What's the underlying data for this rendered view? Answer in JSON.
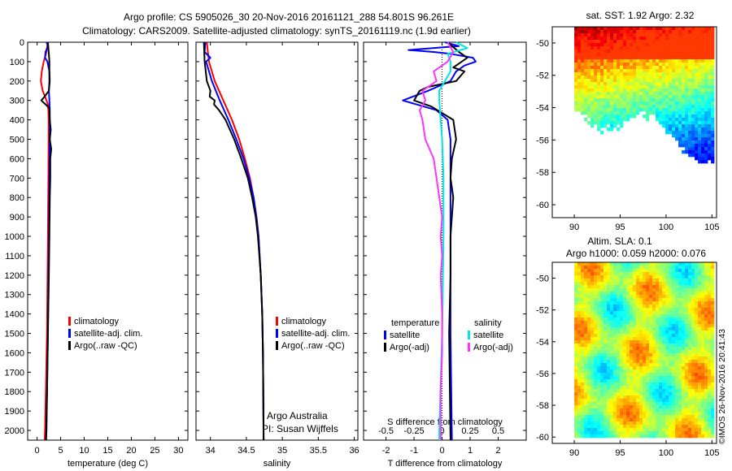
{
  "title": {
    "line1": "Argo profile: CS 5905026_30 20-Nov-2016 20161121_288 54.801S 96.261E",
    "line2": "Climatology: CARS2009. Satellite-adjusted climatology: synTS_20161119.nc (1.9d earlier)"
  },
  "credit": {
    "line1": "Argo Australia",
    "line2": "PI: Susan Wijffels",
    "stamp": "©IMOS 26-Nov-2016 20:41:43"
  },
  "colors": {
    "climatology": "#ff0000",
    "satellite": "#0000ff",
    "argo": "#000000",
    "satellite_salinity": "#00e5e5",
    "argo_salinity": "#ff33ff"
  },
  "maps": {
    "sst": {
      "title": "sat. SST: 1.92 Argo: 2.32",
      "colormap": "jet",
      "mask": "land/cloud below ~-55S"
    },
    "sla": {
      "title_line1": "Altim. SLA: 0.1",
      "title_line2": "Argo h1000: 0.059 h2000: 0.076",
      "colormap": "jet"
    },
    "x_ticks": [
      "90",
      "95",
      "100",
      "105"
    ],
    "y_ticks": [
      "-50",
      "-52",
      "-54",
      "-56",
      "-58",
      "-60"
    ]
  },
  "chart_data": [
    {
      "type": "line",
      "xlabel": "temperature (deg C)",
      "xlim": [
        -2,
        32
      ],
      "ylim": [
        2050,
        0
      ],
      "x_ticks": [
        "0",
        "5",
        "10",
        "15",
        "20",
        "25",
        "30"
      ],
      "y_ticks": [
        "0",
        "100",
        "200",
        "300",
        "400",
        "500",
        "600",
        "700",
        "800",
        "900",
        "1000",
        "1100",
        "1200",
        "1300",
        "1400",
        "1500",
        "1600",
        "1700",
        "1800",
        "1900",
        "2000"
      ],
      "legend": [
        "climatology",
        "satellite-adj. clim.",
        "Argo(..raw -QC)"
      ],
      "series": [
        {
          "name": "climatology",
          "depth": [
            0,
            50,
            100,
            150,
            200,
            250,
            300,
            320,
            350,
            400,
            500,
            700,
            1000,
            1500,
            2000,
            2050
          ],
          "values": [
            2.3,
            2.0,
            1.4,
            1.0,
            0.8,
            1.2,
            2.0,
            2.3,
            2.4,
            2.45,
            2.45,
            2.4,
            2.3,
            2.1,
            1.7,
            1.6
          ]
        },
        {
          "name": "satellite-adj. clim.",
          "depth": [
            0,
            20,
            50,
            80,
            100,
            150,
            200,
            250,
            300,
            350,
            400,
            500,
            700,
            1000,
            1500,
            2000,
            2050
          ],
          "values": [
            2.0,
            2.3,
            1.8,
            1.7,
            2.2,
            2.6,
            2.6,
            2.5,
            2.6,
            2.7,
            2.7,
            2.7,
            2.6,
            2.5,
            2.3,
            2.0,
            1.9
          ]
        },
        {
          "name": "Argo(..raw -QC)",
          "depth": [
            0,
            30,
            60,
            100,
            150,
            200,
            250,
            280,
            300,
            320,
            340,
            400,
            450,
            500,
            550,
            600,
            700,
            800,
            1000,
            1200,
            1500,
            1800,
            2050
          ],
          "values": [
            2.3,
            2.4,
            2.5,
            2.6,
            2.6,
            2.7,
            2.5,
            1.6,
            0.9,
            1.8,
            2.6,
            2.7,
            2.9,
            2.7,
            3.0,
            2.8,
            2.8,
            2.7,
            2.6,
            2.5,
            2.3,
            2.1,
            1.9
          ]
        }
      ]
    },
    {
      "type": "line",
      "xlabel": "salinity",
      "xlim": [
        33.8,
        36.05
      ],
      "ylim": [
        2050,
        0
      ],
      "x_ticks": [
        "34",
        "34.5",
        "35",
        "35.5",
        "36"
      ],
      "legend": [
        "climatology",
        "satellite-adj. clim.",
        "Argo(..raw -QC)"
      ],
      "series": [
        {
          "name": "climatology",
          "depth": [
            0,
            100,
            200,
            300,
            400,
            500,
            600,
            700,
            800,
            900,
            1000,
            1200,
            1400,
            1600,
            1800,
            2050
          ],
          "values": [
            33.95,
            33.98,
            34.06,
            34.18,
            34.3,
            34.4,
            34.48,
            34.55,
            34.6,
            34.64,
            34.67,
            34.7,
            34.72,
            34.73,
            34.735,
            34.74
          ]
        },
        {
          "name": "satellite-adj. clim.",
          "depth": [
            0,
            50,
            80,
            100,
            200,
            300,
            400,
            500,
            600,
            700,
            800,
            900,
            1000,
            1200,
            1400,
            1600,
            1800,
            2050
          ],
          "values": [
            33.93,
            33.92,
            34.0,
            33.94,
            34.02,
            34.13,
            34.25,
            34.36,
            34.46,
            34.54,
            34.6,
            34.64,
            34.67,
            34.7,
            34.72,
            34.73,
            34.735,
            34.74
          ]
        },
        {
          "name": "Argo(..raw -QC)",
          "depth": [
            0,
            100,
            200,
            250,
            280,
            300,
            320,
            350,
            400,
            500,
            600,
            700,
            800,
            900,
            1000,
            1200,
            1400,
            1600,
            1800,
            2050
          ],
          "values": [
            33.91,
            33.92,
            33.95,
            34.0,
            33.99,
            34.06,
            34.05,
            34.12,
            34.21,
            34.33,
            34.43,
            34.52,
            34.58,
            34.63,
            34.66,
            34.7,
            34.72,
            34.73,
            34.735,
            34.74
          ]
        }
      ]
    },
    {
      "type": "line",
      "xlabel": "T difference from climatology",
      "xlabel_top": "S difference from climatology",
      "xlim": [
        -2.8,
        3.0
      ],
      "ylim": [
        2050,
        0
      ],
      "x_ticks": [
        "-2",
        "-1",
        "0",
        "1",
        "2"
      ],
      "x_ticks_top": [
        {
          "label": "-0.5",
          "t_pos": -2.0
        },
        {
          "label": "-0.25",
          "t_pos": -1.0
        },
        {
          "label": "0",
          "t_pos": 0
        },
        {
          "label": "0.25",
          "t_pos": 1.0
        },
        {
          "label": "0.5",
          "t_pos": 2.0
        }
      ],
      "legend_groups": [
        "temperature",
        "salinity"
      ],
      "legend": [
        "satellite",
        "Argo(-adj)",
        "satellite",
        "Argo(-adj)"
      ],
      "series": [
        {
          "name": "satellite",
          "depth": [
            0,
            20,
            40,
            50,
            60,
            80,
            100,
            120,
            150,
            200,
            250,
            300,
            350,
            400,
            500,
            700,
            1000,
            1500,
            2050
          ],
          "values": [
            0.1,
            0.6,
            -1.2,
            -0.3,
            0.3,
            1.1,
            1.2,
            0.8,
            0.5,
            0.3,
            -0.5,
            -1.4,
            -0.2,
            0.2,
            0.3,
            0.3,
            0.3,
            0.3,
            0.35
          ]
        },
        {
          "name": "Argo(-adj)",
          "depth": [
            0,
            50,
            80,
            100,
            130,
            150,
            200,
            230,
            250,
            300,
            330,
            400,
            500,
            600,
            700,
            800,
            900,
            1000,
            1200,
            1500,
            2050
          ],
          "values": [
            0.2,
            0.6,
            0.9,
            0.7,
            0.4,
            0.8,
            0.5,
            -0.5,
            -0.8,
            -1.0,
            -0.4,
            0.4,
            0.5,
            0.35,
            0.3,
            0.4,
            0.35,
            0.3,
            0.3,
            0.25,
            0.3
          ]
        },
        {
          "name": "satellite",
          "depth": [
            0,
            30,
            60,
            100,
            150,
            200,
            250,
            300,
            400,
            500,
            700,
            1000,
            1500,
            2000,
            2050
          ],
          "values": [
            0.5,
            0.9,
            0.2,
            0.3,
            0.3,
            0.1,
            -0.1,
            -0.1,
            -0.05,
            0.0,
            0.05,
            0.05,
            0.0,
            -0.1,
            -0.1
          ]
        },
        {
          "name": "Argo(-adj)",
          "depth": [
            0,
            50,
            100,
            150,
            200,
            250,
            300,
            350,
            400,
            500,
            600,
            700,
            800,
            900,
            1000,
            1100,
            1200,
            1400,
            1600,
            1800,
            2050
          ],
          "values": [
            0.2,
            0.4,
            0.2,
            -0.3,
            -0.2,
            -0.7,
            -0.6,
            -0.8,
            -0.7,
            -0.6,
            -0.3,
            -0.2,
            -0.1,
            0.0,
            -0.05,
            0.0,
            -0.05,
            0.0,
            0.0,
            -0.05,
            -0.05
          ]
        }
      ]
    }
  ]
}
